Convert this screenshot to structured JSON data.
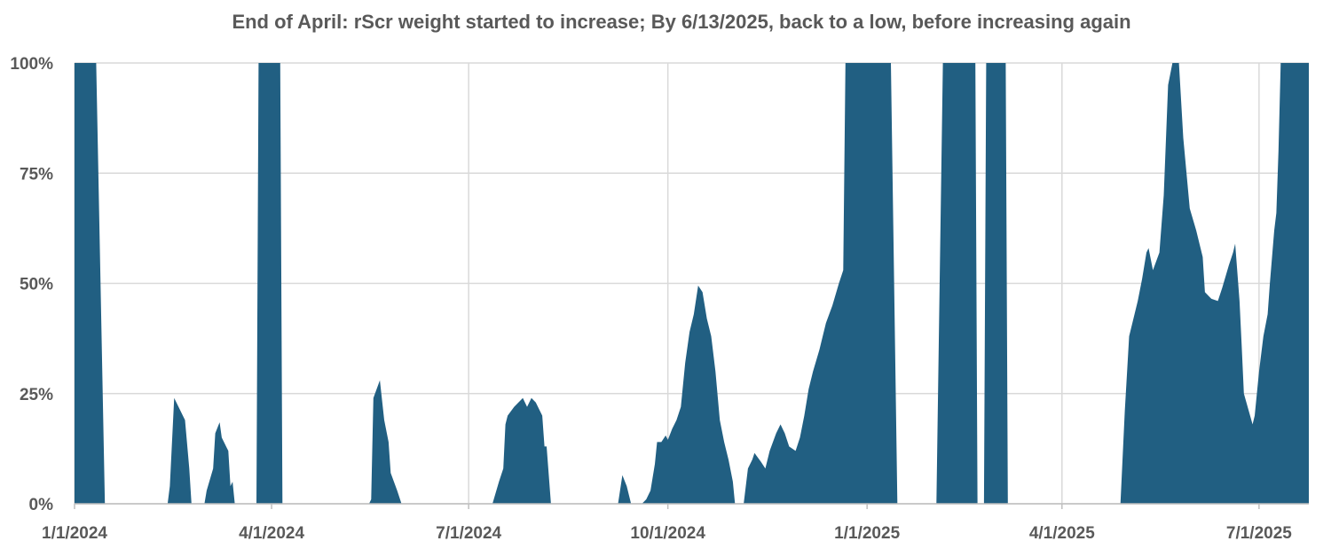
{
  "chart_data": {
    "type": "area",
    "title": "End of April: rScr weight started to increase; By 6/13/2025, back to a low, before increasing again",
    "xlabel": "",
    "ylabel": "",
    "ylim": [
      0,
      100
    ],
    "y_ticks": [
      "0%",
      "25%",
      "50%",
      "75%",
      "100%"
    ],
    "x_ticks": [
      "1/1/2024",
      "4/1/2024",
      "7/1/2024",
      "10/1/2024",
      "1/1/2025",
      "4/1/2025",
      "7/1/2025"
    ],
    "xlim": [
      "2024-01-01",
      "2025-07-24"
    ],
    "grid": true,
    "legend": "none",
    "series": [
      {
        "color": "#215f82",
        "points": [
          [
            "2024-01-01",
            100
          ],
          [
            "2024-01-11",
            100
          ],
          [
            "2024-01-15",
            0
          ],
          [
            "2024-02-13",
            0
          ],
          [
            "2024-02-14",
            4
          ],
          [
            "2024-02-16",
            24
          ],
          [
            "2024-02-21",
            19
          ],
          [
            "2024-02-23",
            8
          ],
          [
            "2024-02-24",
            0
          ],
          [
            "2024-03-01",
            0
          ],
          [
            "2024-03-02",
            3
          ],
          [
            "2024-03-05",
            8
          ],
          [
            "2024-03-06",
            16
          ],
          [
            "2024-03-08",
            18.5
          ],
          [
            "2024-03-09",
            15
          ],
          [
            "2024-03-12",
            12
          ],
          [
            "2024-03-13",
            4
          ],
          [
            "2024-03-14",
            5
          ],
          [
            "2024-03-15",
            0
          ],
          [
            "2024-03-25",
            0
          ],
          [
            "2024-03-26",
            100
          ],
          [
            "2024-04-05",
            100
          ],
          [
            "2024-04-06",
            0
          ],
          [
            "2024-05-16",
            0
          ],
          [
            "2024-05-17",
            1
          ],
          [
            "2024-05-18",
            24
          ],
          [
            "2024-05-21",
            28
          ],
          [
            "2024-05-23",
            19
          ],
          [
            "2024-05-25",
            14
          ],
          [
            "2024-05-26",
            7
          ],
          [
            "2024-05-29",
            3
          ],
          [
            "2024-05-31",
            0
          ],
          [
            "2024-07-12",
            0
          ],
          [
            "2024-07-15",
            5
          ],
          [
            "2024-07-17",
            8
          ],
          [
            "2024-07-18",
            18
          ],
          [
            "2024-07-19",
            20
          ],
          [
            "2024-07-22",
            22
          ],
          [
            "2024-07-26",
            24
          ],
          [
            "2024-07-28",
            22
          ],
          [
            "2024-07-30",
            24
          ],
          [
            "2024-08-01",
            23
          ],
          [
            "2024-08-04",
            20
          ],
          [
            "2024-08-05",
            13
          ],
          [
            "2024-08-06",
            13
          ],
          [
            "2024-08-08",
            0
          ],
          [
            "2024-09-08",
            0
          ],
          [
            "2024-09-10",
            6.5
          ],
          [
            "2024-09-12",
            4
          ],
          [
            "2024-09-14",
            0
          ],
          [
            "2024-09-19",
            0
          ],
          [
            "2024-09-21",
            1
          ],
          [
            "2024-09-23",
            3
          ],
          [
            "2024-09-25",
            9
          ],
          [
            "2024-09-26",
            14
          ],
          [
            "2024-09-28",
            14
          ],
          [
            "2024-09-30",
            15.5
          ],
          [
            "2024-10-01",
            14.5
          ],
          [
            "2024-10-03",
            17
          ],
          [
            "2024-10-05",
            19
          ],
          [
            "2024-10-07",
            22
          ],
          [
            "2024-10-09",
            32
          ],
          [
            "2024-10-11",
            39
          ],
          [
            "2024-10-13",
            43
          ],
          [
            "2024-10-15",
            49.5
          ],
          [
            "2024-10-17",
            48
          ],
          [
            "2024-10-19",
            42
          ],
          [
            "2024-10-21",
            38
          ],
          [
            "2024-10-23",
            30
          ],
          [
            "2024-10-25",
            19
          ],
          [
            "2024-10-27",
            14
          ],
          [
            "2024-10-29",
            10
          ],
          [
            "2024-10-31",
            5
          ],
          [
            "2024-11-01",
            0
          ],
          [
            "2024-11-05",
            0
          ],
          [
            "2024-11-07",
            8
          ],
          [
            "2024-11-09",
            10
          ],
          [
            "2024-11-10",
            11.5
          ],
          [
            "2024-11-13",
            9.5
          ],
          [
            "2024-11-15",
            8
          ],
          [
            "2024-11-17",
            12
          ],
          [
            "2024-11-20",
            16
          ],
          [
            "2024-11-22",
            18
          ],
          [
            "2024-11-24",
            16
          ],
          [
            "2024-11-26",
            13
          ],
          [
            "2024-11-29",
            12
          ],
          [
            "2024-12-01",
            15
          ],
          [
            "2024-12-03",
            20
          ],
          [
            "2024-12-05",
            26
          ],
          [
            "2024-12-07",
            30
          ],
          [
            "2024-12-10",
            35
          ],
          [
            "2024-12-13",
            41
          ],
          [
            "2024-12-16",
            45
          ],
          [
            "2024-12-19",
            50
          ],
          [
            "2024-12-21",
            53
          ],
          [
            "2024-12-22",
            100
          ],
          [
            "2025-01-12",
            100
          ],
          [
            "2025-01-15",
            0
          ],
          [
            "2025-02-02",
            0
          ],
          [
            "2025-02-05",
            100
          ],
          [
            "2025-02-20",
            100
          ],
          [
            "2025-02-21",
            0
          ],
          [
            "2025-02-24",
            0
          ],
          [
            "2025-02-25",
            100
          ],
          [
            "2025-03-06",
            100
          ],
          [
            "2025-03-07",
            0
          ],
          [
            "2025-04-28",
            0
          ],
          [
            "2025-04-30",
            21
          ],
          [
            "2025-05-02",
            38
          ],
          [
            "2025-05-06",
            46
          ],
          [
            "2025-05-08",
            51
          ],
          [
            "2025-05-10",
            57
          ],
          [
            "2025-05-11",
            58
          ],
          [
            "2025-05-13",
            53
          ],
          [
            "2025-05-16",
            57
          ],
          [
            "2025-05-18",
            70
          ],
          [
            "2025-05-20",
            95
          ],
          [
            "2025-05-22",
            100
          ],
          [
            "2025-05-25",
            100
          ],
          [
            "2025-05-27",
            83
          ],
          [
            "2025-05-30",
            67
          ],
          [
            "2025-06-02",
            62
          ],
          [
            "2025-06-05",
            56
          ],
          [
            "2025-06-06",
            48
          ],
          [
            "2025-06-08",
            47
          ],
          [
            "2025-06-09",
            46.5
          ],
          [
            "2025-06-12",
            46
          ],
          [
            "2025-06-14",
            49
          ],
          [
            "2025-06-17",
            54
          ],
          [
            "2025-06-19",
            57
          ],
          [
            "2025-06-20",
            59
          ],
          [
            "2025-06-22",
            46
          ],
          [
            "2025-06-23",
            36
          ],
          [
            "2025-06-24",
            25
          ],
          [
            "2025-06-28",
            18
          ],
          [
            "2025-06-29",
            20
          ],
          [
            "2025-07-01",
            30
          ],
          [
            "2025-07-03",
            38
          ],
          [
            "2025-07-05",
            43
          ],
          [
            "2025-07-06",
            50
          ],
          [
            "2025-07-08",
            62
          ],
          [
            "2025-07-09",
            66
          ],
          [
            "2025-07-10",
            80
          ],
          [
            "2025-07-11",
            100
          ],
          [
            "2025-07-24",
            100
          ]
        ]
      }
    ]
  }
}
